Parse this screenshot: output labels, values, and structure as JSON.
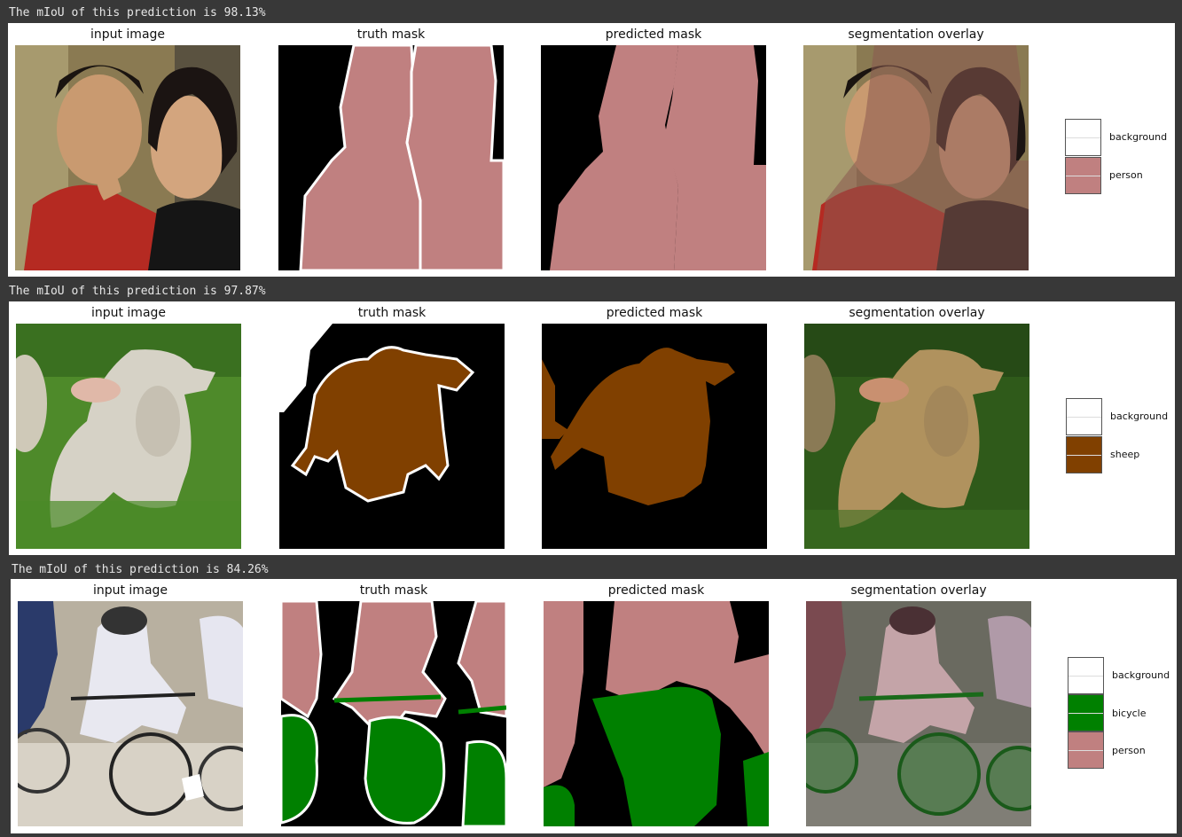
{
  "rows": [
    {
      "miou_text": "The mIoU of this prediction is 98.13%",
      "titles": [
        "input image",
        "truth mask",
        "predicted mask",
        "segmentation overlay"
      ],
      "legend": [
        {
          "label": "background",
          "color": "#000000"
        },
        {
          "label": "person",
          "color": "#c08080"
        }
      ]
    },
    {
      "miou_text": "The mIoU of this prediction is 97.87%",
      "titles": [
        "input image",
        "truth mask",
        "predicted mask",
        "segmentation overlay"
      ],
      "legend": [
        {
          "label": "background",
          "color": "#000000"
        },
        {
          "label": "sheep",
          "color": "#804000"
        }
      ]
    },
    {
      "miou_text": "The mIoU of this prediction is 84.26%",
      "titles": [
        "input image",
        "truth mask",
        "predicted mask",
        "segmentation overlay"
      ],
      "legend": [
        {
          "label": "background",
          "color": "#000000"
        },
        {
          "label": "bicycle",
          "color": "#008000"
        },
        {
          "label": "person",
          "color": "#c08080"
        }
      ]
    }
  ]
}
